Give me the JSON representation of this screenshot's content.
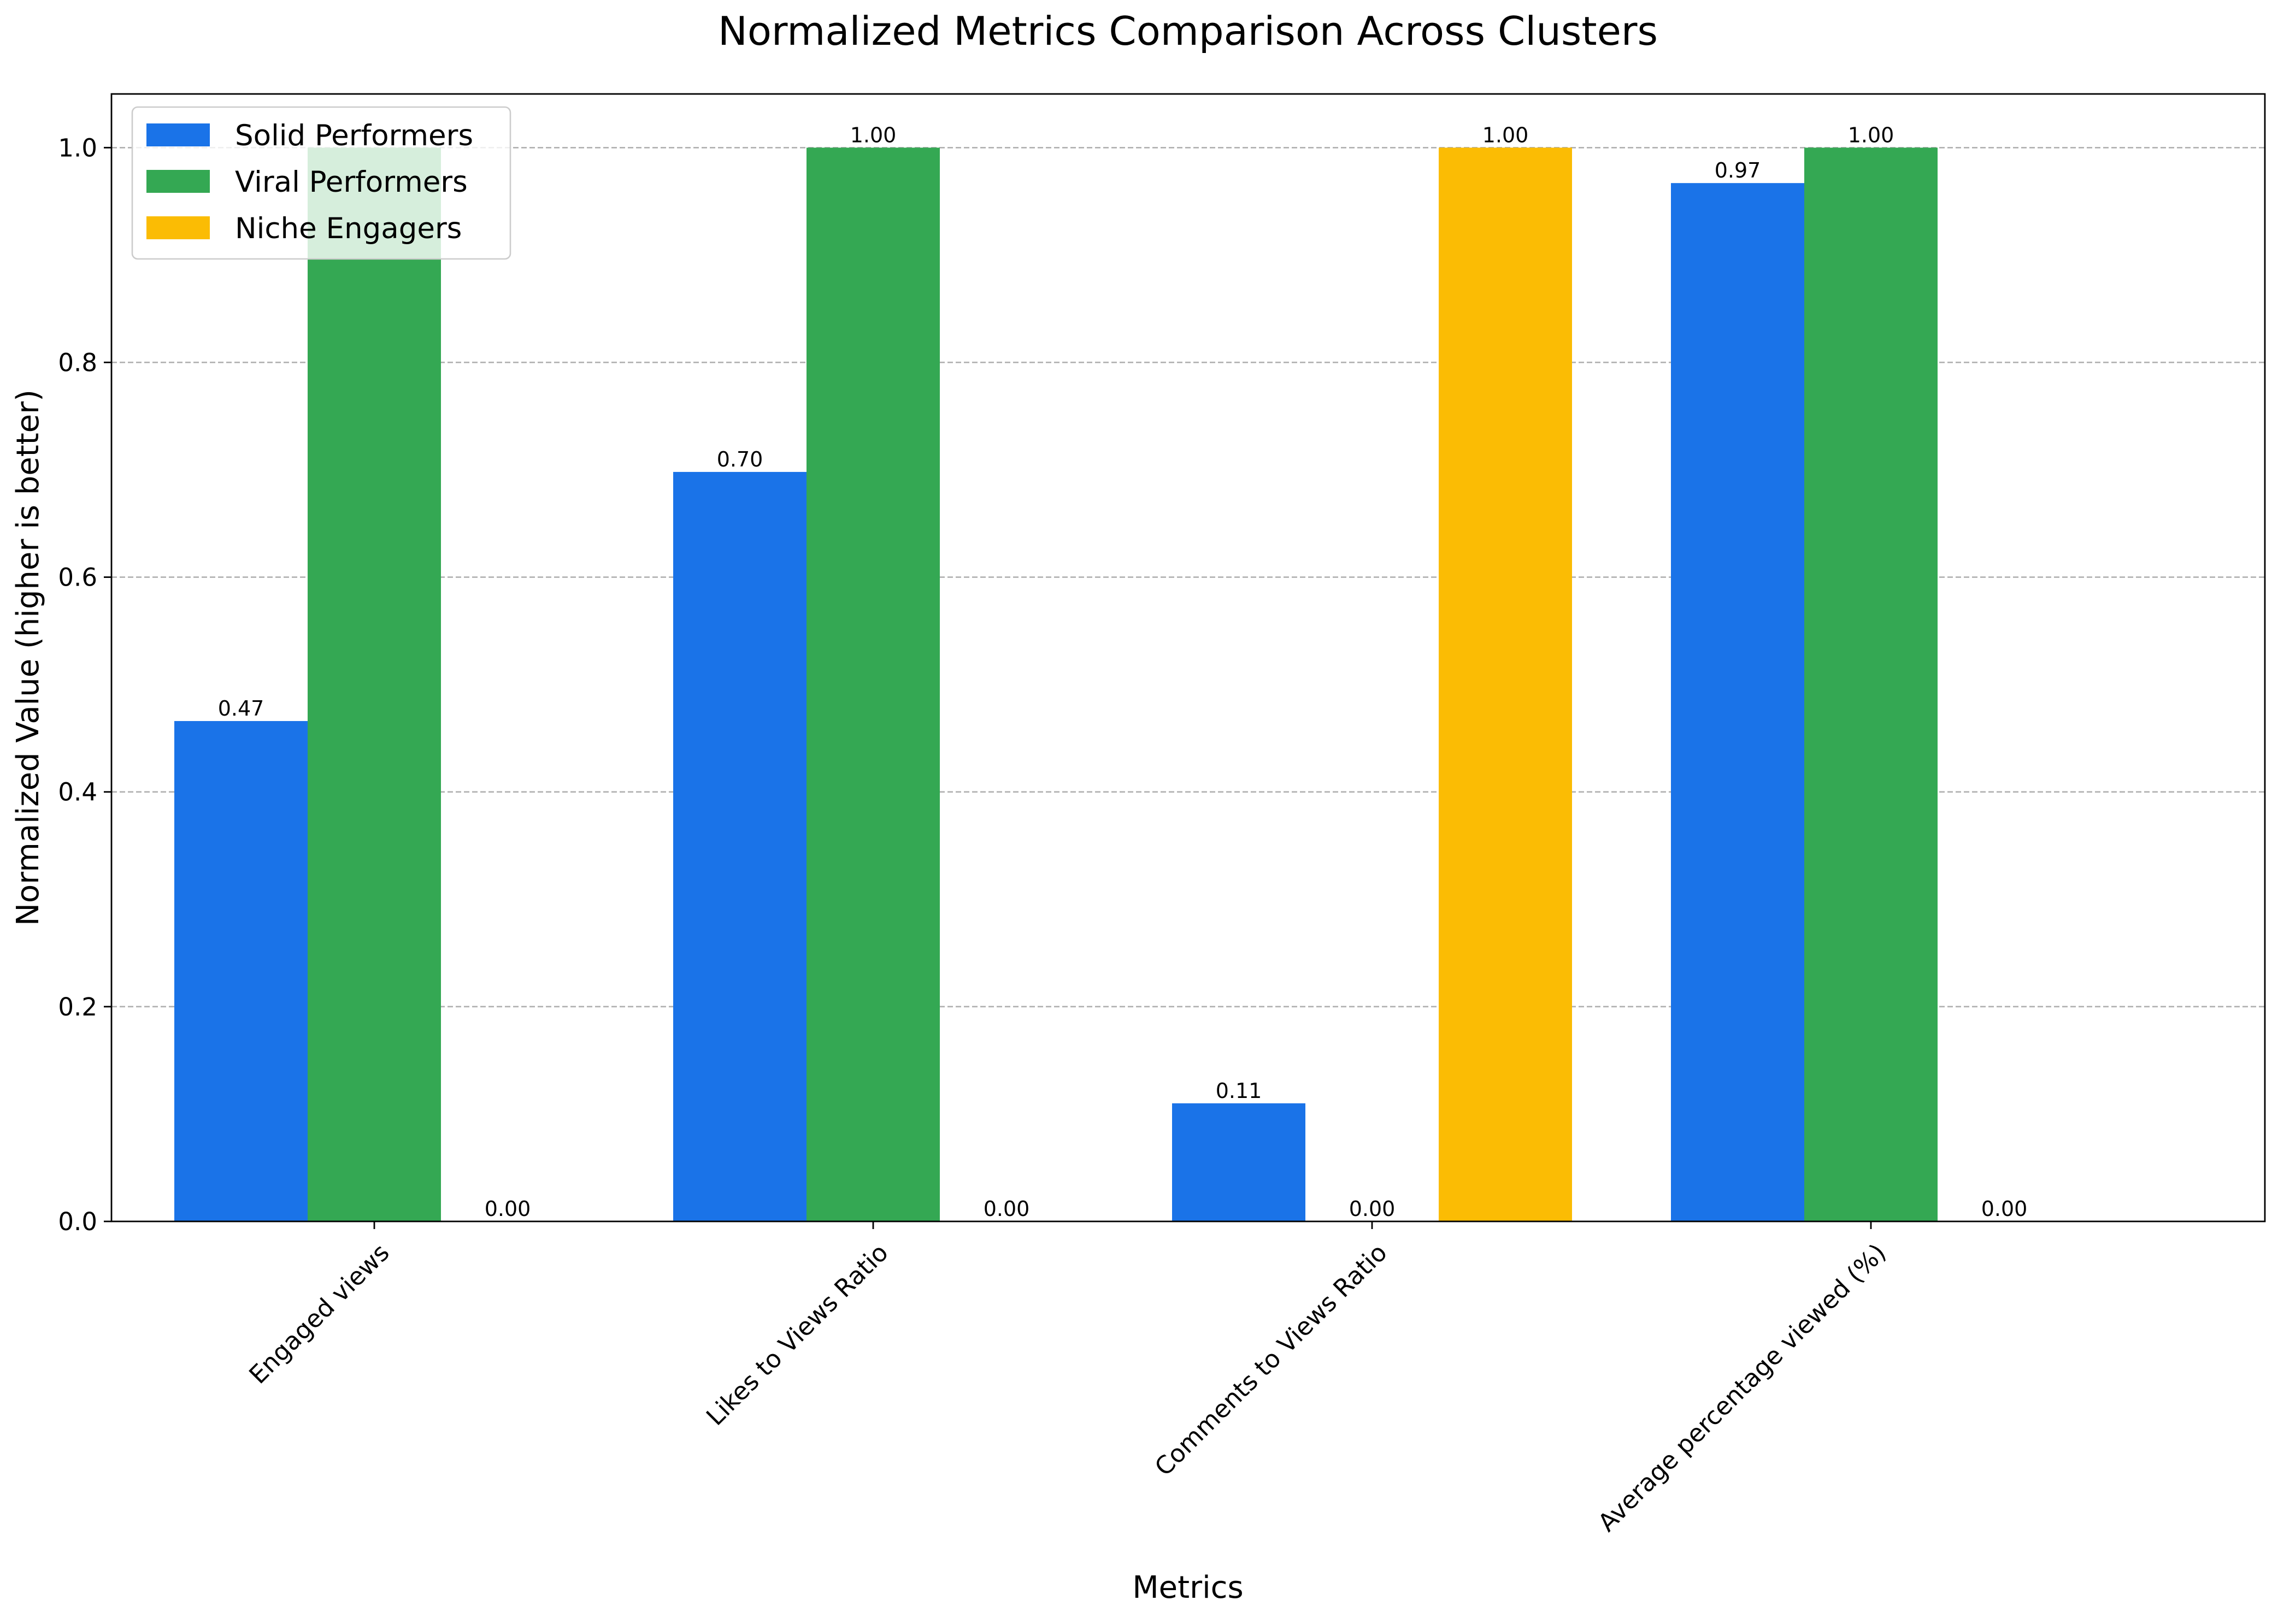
{
  "chart_data": {
    "type": "bar",
    "title": "Normalized Metrics Comparison Across Clusters",
    "xlabel": "Metrics",
    "ylabel": "Normalized Value (higher is better)",
    "categories": [
      "Engaged views",
      "Likes to Views Ratio",
      "Comments to Views Ratio",
      "Average percentage viewed (%)"
    ],
    "series": [
      {
        "name": "Solid Performers",
        "color": "#1a73e8",
        "values": [
          0.466,
          0.698,
          0.11,
          0.967
        ],
        "labels": [
          "0.47",
          "0.70",
          "0.11",
          "0.97"
        ]
      },
      {
        "name": "Viral Performers",
        "color": "#34a853",
        "values": [
          1.0,
          1.0,
          0.0,
          1.0
        ],
        "labels": [
          "",
          "1.00",
          "0.00",
          "1.00"
        ]
      },
      {
        "name": "Niche Engagers",
        "color": "#fbbc04",
        "values": [
          0.0,
          0.0,
          1.0,
          0.0
        ],
        "labels": [
          "0.00",
          "0.00",
          "1.00",
          "0.00"
        ]
      }
    ],
    "ylim": [
      0,
      1.05
    ],
    "yticks": [
      "0.0",
      "0.2",
      "0.4",
      "0.6",
      "0.8",
      "1.0"
    ],
    "grid": "y, dashed",
    "legend_position": "top-left"
  }
}
